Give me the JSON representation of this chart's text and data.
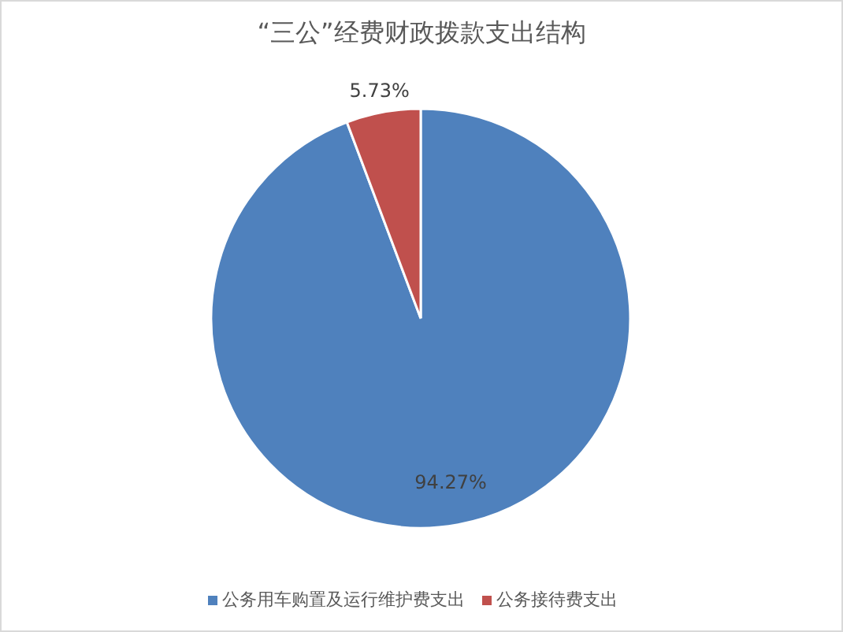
{
  "chart_data": {
    "type": "pie",
    "title": "“三公”经费财政拨款支出结构",
    "categories": [
      "公务用车购置及运行维护费支出",
      "公务接待费支出"
    ],
    "values": [
      94.27,
      5.73
    ],
    "colors": [
      "#4f81bd",
      "#c0504d"
    ],
    "value_labels": [
      "94.27%",
      "5.73%"
    ],
    "legend": "bottom"
  }
}
